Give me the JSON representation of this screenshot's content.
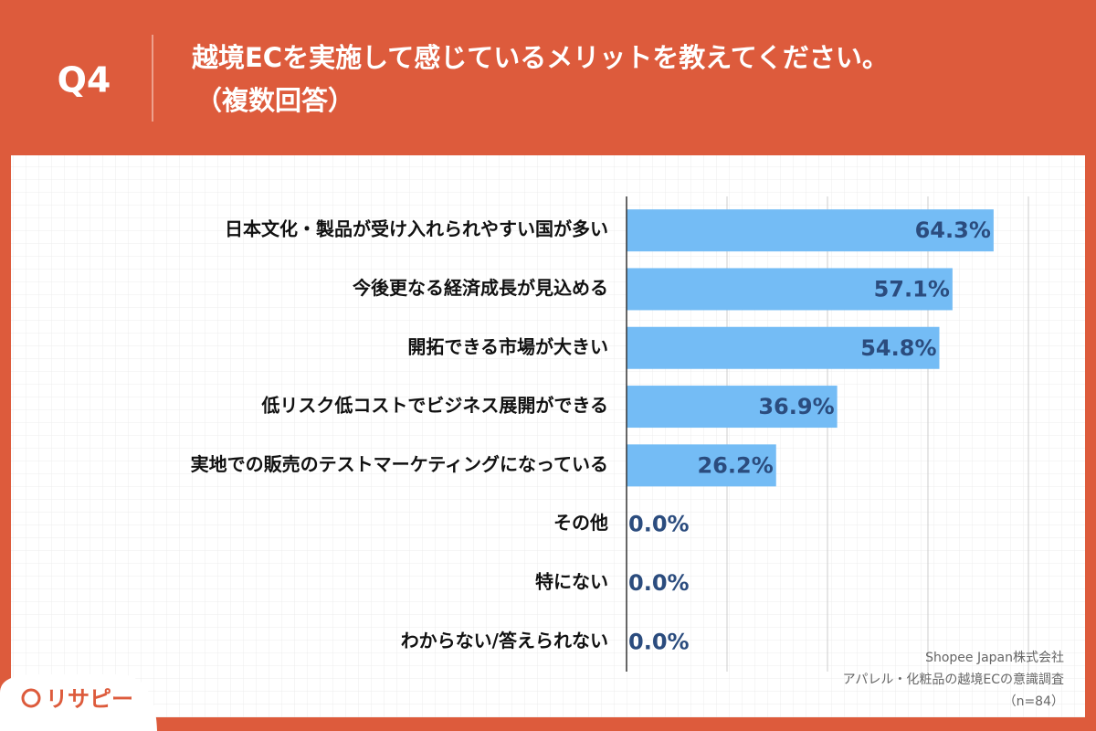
{
  "chart_data": {
    "type": "bar",
    "orientation": "horizontal",
    "question_number": "Q4",
    "title": "越境ECを実施して感じているメリットを教えてください。",
    "subtitle": "（複数回答）",
    "categories": [
      "日本文化・製品が受け入れられやすい国が多い",
      "今後更なる経済成長が見込める",
      "開拓できる市場が大きい",
      "低リスク低コストでビジネス展開ができる",
      "実地での販売のテストマーケティングになっている",
      "その他",
      "特にない",
      "わからない/答えられない"
    ],
    "values": [
      64.3,
      57.1,
      54.8,
      36.9,
      26.2,
      0.0,
      0.0,
      0.0
    ],
    "value_labels": [
      "64.3%",
      "57.1%",
      "54.8%",
      "36.9%",
      "26.2%",
      "0.0%",
      "0.0%",
      "0.0%"
    ],
    "color": "#74bcf5",
    "label_color": "#2b4c7e",
    "xlim": [
      0,
      70.4
    ],
    "grid": true,
    "notes": [
      "Shopee Japan株式会社",
      "アパレル・化粧品の越境ECの意識調査",
      "（n=84）"
    ],
    "logo": "リサピー"
  }
}
